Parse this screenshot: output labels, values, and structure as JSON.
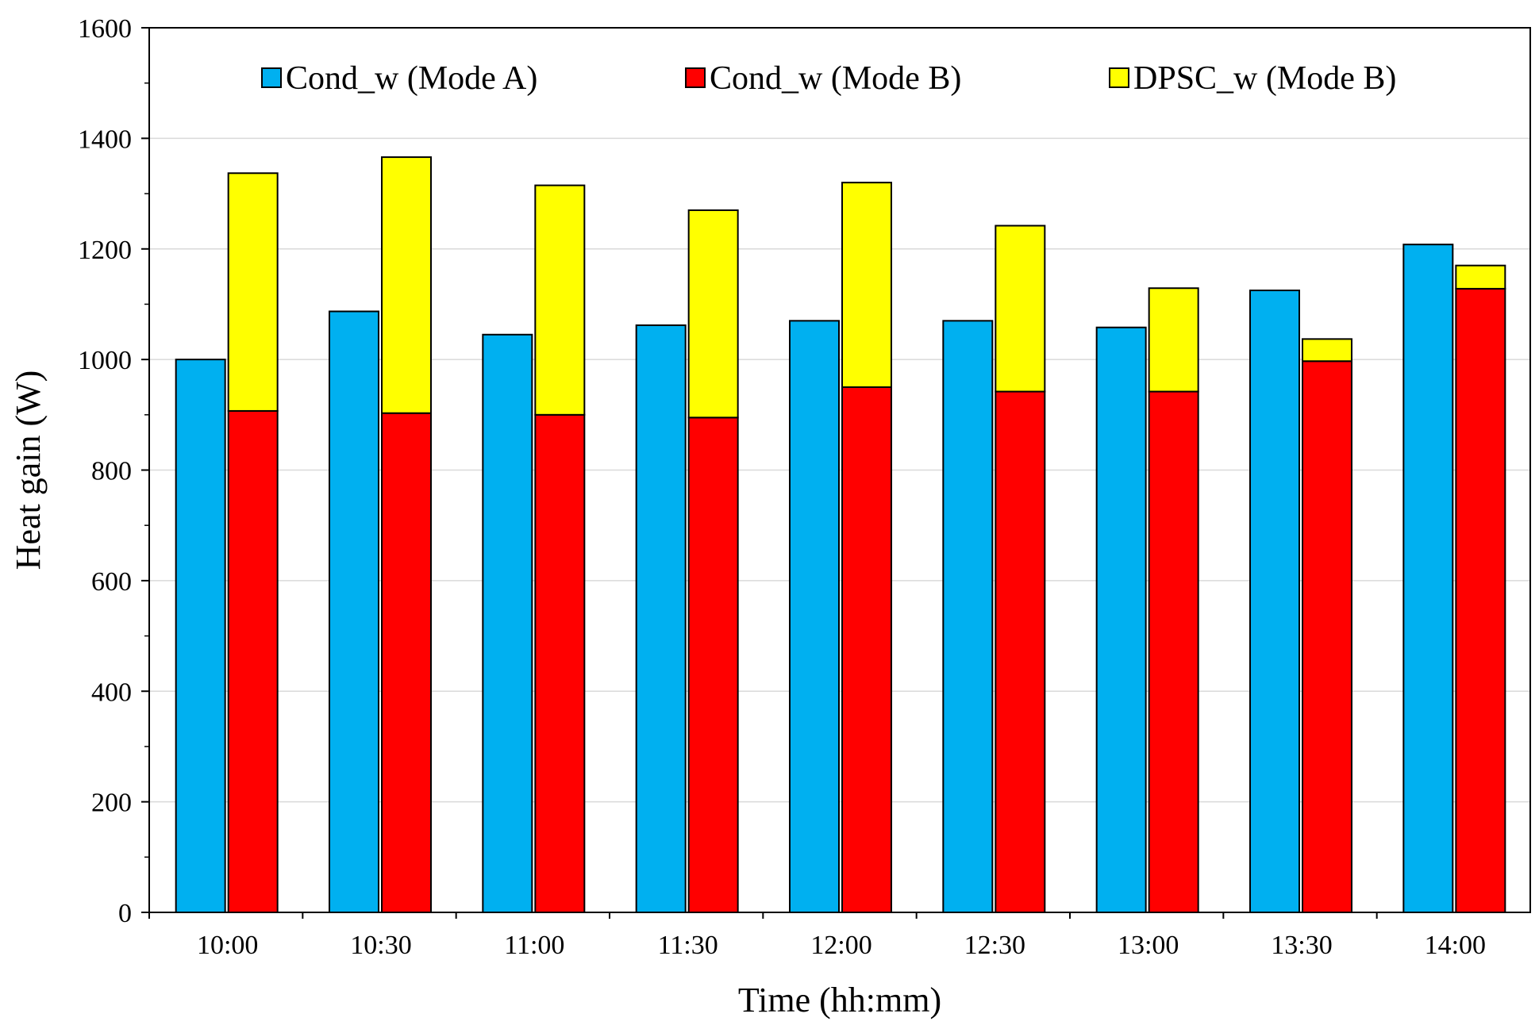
{
  "chart_data": {
    "type": "bar",
    "xlabel": "Time (hh:mm)",
    "ylabel": "Heat gain (W)",
    "ylim": [
      0,
      1600
    ],
    "yticks": [
      0,
      200,
      400,
      600,
      800,
      1000,
      1200,
      1400,
      1600
    ],
    "grid": true,
    "legend_position": "top",
    "categories": [
      "10:00",
      "10:30",
      "11:00",
      "11:30",
      "12:00",
      "12:30",
      "13:00",
      "13:30",
      "14:00"
    ],
    "series": [
      {
        "name": "Cond_w (Mode A)",
        "color": "#00B0F0",
        "stack": "A",
        "values": [
          1000,
          1087,
          1045,
          1062,
          1070,
          1070,
          1058,
          1125,
          1208
        ]
      },
      {
        "name": "Cond_w (Mode B)",
        "color": "#FF0000",
        "stack": "B",
        "values": [
          907,
          903,
          900,
          895,
          950,
          942,
          942,
          997,
          1128
        ]
      },
      {
        "name": "DPSC_w (Mode B)",
        "color": "#FFFF00",
        "stack": "B",
        "values": [
          430,
          463,
          415,
          375,
          370,
          300,
          187,
          40,
          42
        ]
      }
    ]
  }
}
